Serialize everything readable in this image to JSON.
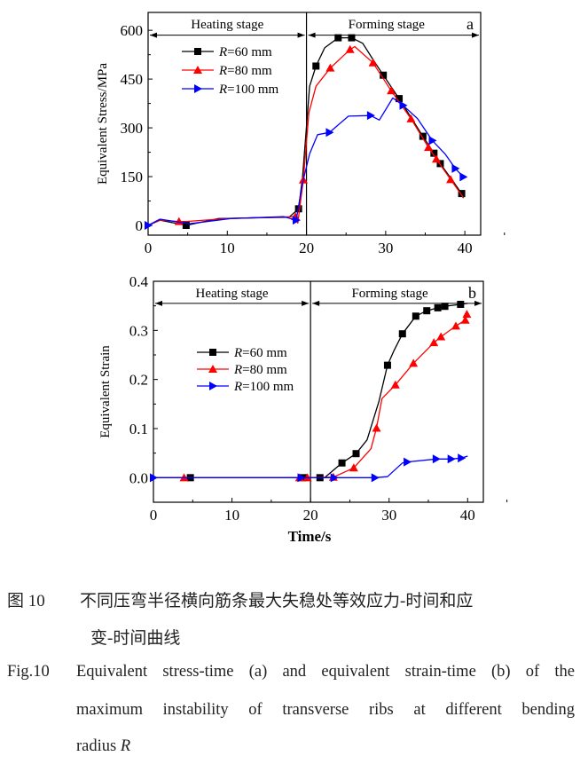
{
  "chart_data": [
    {
      "type": "line",
      "panel_label": "a",
      "xlabel": "",
      "ylabel": "Equivalent Stress/MPa",
      "xlim": [
        0,
        42
      ],
      "ylim": [
        -30,
        655
      ],
      "xticks": [
        0,
        10,
        20,
        30,
        40
      ],
      "yticks": [
        0,
        150,
        300,
        450,
        600
      ],
      "grid": false,
      "legend": "upper-left",
      "stage_divider_x": 20,
      "stage_arrow_y": 585,
      "stages": [
        "Heating stage",
        "Forming stage"
      ],
      "series": [
        {
          "name": "R=60 mm",
          "color": "#000000",
          "marker": "square",
          "line": [
            [
              0,
              0
            ],
            [
              1.5,
              16
            ],
            [
              4.8,
              0
            ],
            [
              8.9,
              21
            ],
            [
              17.8,
              25
            ],
            [
              19.0,
              51
            ],
            [
              19.5,
              147
            ],
            [
              20.4,
              428
            ],
            [
              21.2,
              490
            ],
            [
              22.3,
              546
            ],
            [
              24.0,
              577
            ],
            [
              25.7,
              577
            ],
            [
              27.1,
              560
            ],
            [
              28.4,
              510
            ],
            [
              29.7,
              462
            ],
            [
              31.7,
              390
            ],
            [
              34.7,
              274
            ],
            [
              36.1,
              222
            ],
            [
              36.9,
              190
            ],
            [
              39.6,
              98
            ],
            [
              39.8,
              84
            ]
          ],
          "markers": [
            [
              4.8,
              0
            ],
            [
              19.0,
              51
            ],
            [
              21.2,
              490
            ],
            [
              24.0,
              577
            ],
            [
              25.7,
              577
            ],
            [
              29.7,
              462
            ],
            [
              31.7,
              390
            ],
            [
              34.7,
              274
            ],
            [
              36.1,
              222
            ],
            [
              36.9,
              190
            ],
            [
              39.6,
              98
            ]
          ]
        },
        {
          "name": "R=80 mm",
          "color": "#ff0000",
          "marker": "triangle-up",
          "line": [
            [
              0,
              0
            ],
            [
              1.5,
              16
            ],
            [
              3.9,
              12
            ],
            [
              4.8,
              12
            ],
            [
              10,
              21
            ],
            [
              18.6,
              27
            ],
            [
              18.9,
              7
            ],
            [
              19.6,
              140
            ],
            [
              20.3,
              347
            ],
            [
              21.2,
              428
            ],
            [
              23.0,
              484
            ],
            [
              25.5,
              541
            ],
            [
              26.1,
              550
            ],
            [
              28.4,
              500
            ],
            [
              30.7,
              414
            ],
            [
              33.2,
              328
            ],
            [
              35.4,
              240
            ],
            [
              36.4,
              204
            ],
            [
              38.2,
              141
            ],
            [
              39.8,
              86
            ]
          ],
          "markers": [
            [
              3.9,
              12
            ],
            [
              18.6,
              27
            ],
            [
              19.6,
              140
            ],
            [
              23.0,
              484
            ],
            [
              25.5,
              541
            ],
            [
              28.4,
              500
            ],
            [
              30.7,
              414
            ],
            [
              33.2,
              328
            ],
            [
              35.4,
              240
            ],
            [
              36.4,
              204
            ],
            [
              38.2,
              141
            ]
          ]
        },
        {
          "name": "R=100 mm",
          "color": "#0000ff",
          "marker": "triangle-right",
          "line": [
            [
              0,
              0
            ],
            [
              1.5,
              19
            ],
            [
              5.2,
              5
            ],
            [
              10.4,
              21
            ],
            [
              17.1,
              27
            ],
            [
              18.7,
              16
            ],
            [
              19.5,
              130
            ],
            [
              20.4,
              220
            ],
            [
              21.4,
              279
            ],
            [
              22.9,
              286
            ],
            [
              25.3,
              336
            ],
            [
              28.1,
              338
            ],
            [
              29.2,
              324
            ],
            [
              30.9,
              392
            ],
            [
              32.2,
              369
            ],
            [
              34.0,
              329
            ],
            [
              35.9,
              261
            ],
            [
              37.5,
              220
            ],
            [
              38.8,
              175
            ],
            [
              39.8,
              149
            ]
          ],
          "markers": [
            [
              0,
              0
            ],
            [
              18.7,
              16
            ],
            [
              22.9,
              286
            ],
            [
              28.1,
              338
            ],
            [
              32.2,
              369
            ],
            [
              35.9,
              261
            ],
            [
              38.8,
              175
            ],
            [
              39.8,
              149
            ]
          ]
        }
      ]
    },
    {
      "type": "line",
      "panel_label": "b",
      "xlabel": "Time/s",
      "ylabel": "Equivalent Strain",
      "xlim": [
        0,
        42
      ],
      "ylim": [
        -0.05,
        0.4
      ],
      "xticks": [
        0,
        10,
        20,
        30,
        40
      ],
      "yticks": [
        0.0,
        0.1,
        0.2,
        0.3,
        0.4
      ],
      "ytick_labels": [
        "0.0",
        "0.1",
        "0.2",
        "0.3",
        "0.4"
      ],
      "grid": false,
      "legend": "center-left",
      "stage_divider_x": 20,
      "stage_arrow_y": 0.355,
      "stages": [
        "Heating stage",
        "Forming stage"
      ],
      "series": [
        {
          "name": "R=60 mm",
          "color": "#000000",
          "marker": "square",
          "line": [
            [
              0,
              0
            ],
            [
              4.7,
              0
            ],
            [
              19.1,
              0
            ],
            [
              21.2,
              0
            ],
            [
              21.8,
              0
            ],
            [
              24.0,
              0.03
            ],
            [
              25.8,
              0.049
            ],
            [
              27.2,
              0.077
            ],
            [
              28.7,
              0.155
            ],
            [
              29.8,
              0.229
            ],
            [
              30.6,
              0.258
            ],
            [
              31.7,
              0.293
            ],
            [
              33.4,
              0.329
            ],
            [
              34.8,
              0.34
            ],
            [
              36.2,
              0.346
            ],
            [
              37.1,
              0.349
            ],
            [
              39.1,
              0.353
            ],
            [
              40,
              0.355
            ]
          ],
          "markers": [
            [
              4.7,
              0
            ],
            [
              19.1,
              0
            ],
            [
              21.2,
              0
            ],
            [
              24.0,
              0.03
            ],
            [
              25.8,
              0.049
            ],
            [
              29.8,
              0.229
            ],
            [
              31.7,
              0.293
            ],
            [
              33.4,
              0.329
            ],
            [
              34.8,
              0.34
            ],
            [
              36.2,
              0.346
            ],
            [
              37.1,
              0.349
            ],
            [
              39.1,
              0.353
            ]
          ]
        },
        {
          "name": "R=80 mm",
          "color": "#ff0000",
          "marker": "triangle-up",
          "line": [
            [
              0,
              0
            ],
            [
              3.9,
              0
            ],
            [
              18.6,
              0
            ],
            [
              19.6,
              0
            ],
            [
              22.9,
              0.001
            ],
            [
              25.5,
              0.02
            ],
            [
              27.7,
              0.059
            ],
            [
              28.4,
              0.101
            ],
            [
              29.1,
              0.161
            ],
            [
              30.8,
              0.189
            ],
            [
              33.1,
              0.233
            ],
            [
              35.7,
              0.275
            ],
            [
              36.6,
              0.287
            ],
            [
              38.5,
              0.309
            ],
            [
              39.7,
              0.321
            ],
            [
              39.9,
              0.333
            ]
          ],
          "markers": [
            [
              3.9,
              0
            ],
            [
              18.6,
              0
            ],
            [
              19.6,
              0
            ],
            [
              22.9,
              0.001
            ],
            [
              25.5,
              0.02
            ],
            [
              28.4,
              0.101
            ],
            [
              30.8,
              0.189
            ],
            [
              33.1,
              0.233
            ],
            [
              35.7,
              0.275
            ],
            [
              36.6,
              0.287
            ],
            [
              38.5,
              0.309
            ],
            [
              39.7,
              0.321
            ],
            [
              39.9,
              0.333
            ]
          ]
        },
        {
          "name": "R=100 mm",
          "color": "#0000ff",
          "marker": "triangle-right",
          "line": [
            [
              0,
              0
            ],
            [
              18.8,
              0
            ],
            [
              23.0,
              0
            ],
            [
              28.2,
              0
            ],
            [
              29.8,
              0.002
            ],
            [
              31.7,
              0.03
            ],
            [
              32.3,
              0.032
            ],
            [
              36.0,
              0.038
            ],
            [
              37.9,
              0.038
            ],
            [
              39.2,
              0.04
            ],
            [
              40,
              0.044
            ]
          ],
          "markers": [
            [
              0,
              0
            ],
            [
              18.8,
              0
            ],
            [
              23.0,
              0
            ],
            [
              28.2,
              0
            ],
            [
              32.3,
              0.032
            ],
            [
              36.0,
              0.038
            ],
            [
              37.9,
              0.038
            ],
            [
              39.2,
              0.04
            ]
          ]
        }
      ]
    }
  ],
  "caption": {
    "cn_label": "图  10",
    "cn_line1": "不同压弯半径横向筋条最大失稳处等效应力-时间和应",
    "cn_line2": "变-时间曲线",
    "en_label": "Fig.10",
    "en_line1": "Equivalent stress-time (a) and equivalent strain-time (b) of the",
    "en_line2": "maximum instability of transverse ribs at different bending",
    "en_line3": "radius R"
  }
}
